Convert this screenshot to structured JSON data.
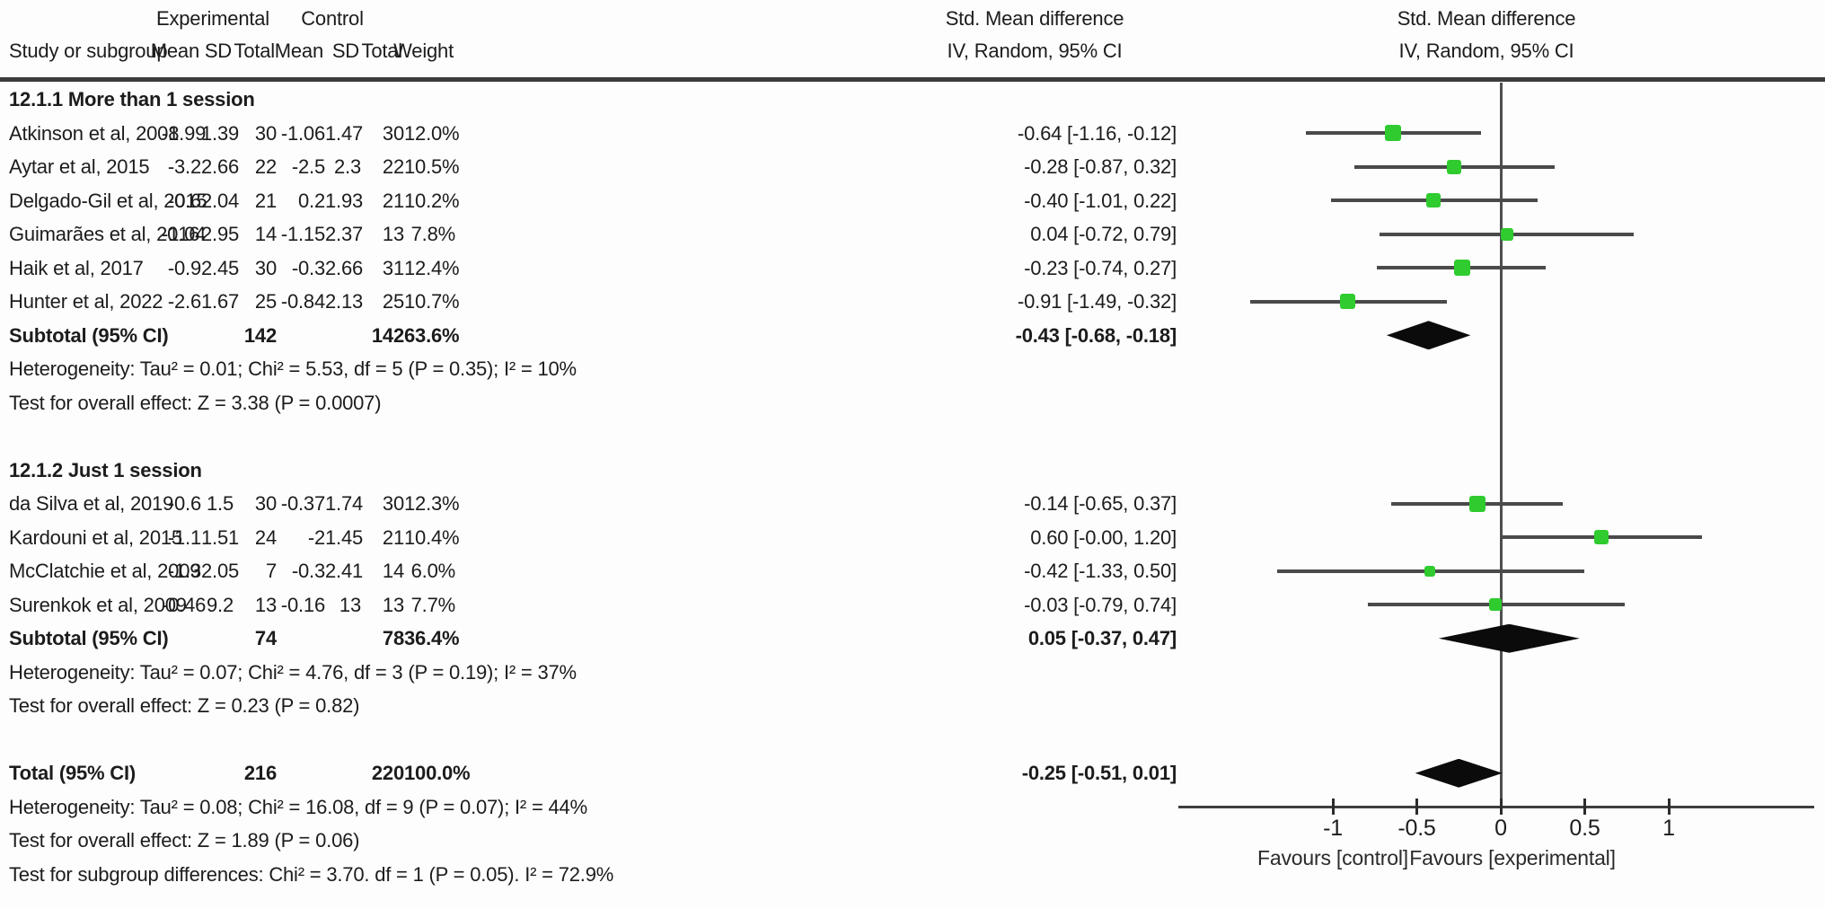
{
  "header": {
    "study_col": "Study or subgroup",
    "exp_group": "Experimental",
    "ctrl_group": "Control",
    "exp_mean": "Mean",
    "exp_sd": "SD",
    "exp_total": "Total",
    "ctrl_mean": "Mean",
    "ctrl_sd": "SD",
    "ctrl_total": "Total",
    "weight": "Weight",
    "effect_col_line1": "Std. Mean difference",
    "effect_col_line2": "IV, Random, 95% CI",
    "plot_col_line1": "Std. Mean difference",
    "plot_col_line2": "IV, Random, 95% CI"
  },
  "rows": [
    {
      "kind": "group",
      "study": "12.1.1 More than 1 session"
    },
    {
      "kind": "study",
      "study": "Atkinson et al, 2008",
      "m1": "-1.99",
      "sd1": "1.39",
      "t1": "30",
      "m2": "-1.06",
      "sd2": "1.47",
      "t2": "30",
      "w": "12.0%",
      "ci": "-0.64 [-1.16, -0.12]"
    },
    {
      "kind": "study",
      "study": "Aytar et al, 2015",
      "m1": "-3.2",
      "sd1": "2.66",
      "t1": "22",
      "m2": "-2.5",
      "sd2": "2.3",
      "t2": "22",
      "w": "10.5%",
      "ci": "-0.28 [-0.87, 0.32]"
    },
    {
      "kind": "study",
      "study": "Delgado-Gil et al, 2015",
      "m1": "-0.6",
      "sd1": "2.04",
      "t1": "21",
      "m2": "0.2",
      "sd2": "1.93",
      "t2": "21",
      "w": "10.2%",
      "ci": "-0.40 [-1.01, 0.22]"
    },
    {
      "kind": "study",
      "study": "Guimarães et al, 2016",
      "m1": "-1.04",
      "sd1": "2.95",
      "t1": "14",
      "m2": "-1.15",
      "sd2": "2.37",
      "t2": "13",
      "w": "7.8%",
      "ci": "0.04 [-0.72, 0.79]"
    },
    {
      "kind": "study",
      "study": "Haik et al, 2017",
      "m1": "-0.9",
      "sd1": "2.45",
      "t1": "30",
      "m2": "-0.3",
      "sd2": "2.66",
      "t2": "31",
      "w": "12.4%",
      "ci": "-0.23 [-0.74, 0.27]"
    },
    {
      "kind": "study",
      "study": "Hunter et al, 2022",
      "m1": "-2.6",
      "sd1": "1.67",
      "t1": "25",
      "m2": "-0.84",
      "sd2": "2.13",
      "t2": "25",
      "w": "10.7%",
      "ci": "-0.91 [-1.49, -0.32]"
    },
    {
      "kind": "subtotal",
      "study": "Subtotal (95% CI)",
      "t1": "142",
      "t2": "142",
      "w": "63.6%",
      "ci": "-0.43 [-0.68, -0.18]"
    },
    {
      "kind": "note",
      "study": "Heterogeneity: Tau² = 0.01; Chi² = 5.53, df = 5 (P = 0.35); I² = 10%"
    },
    {
      "kind": "note",
      "study": "Test for overall effect: Z = 3.38 (P = 0.0007)"
    },
    {
      "kind": "blank",
      "study": ""
    },
    {
      "kind": "group",
      "study": "12.1.2 Just 1 session"
    },
    {
      "kind": "study",
      "study": "da Silva et al, 2019",
      "m1": "-0.6",
      "sd1": "1.5",
      "t1": "30",
      "m2": "-0.37",
      "sd2": "1.74",
      "t2": "30",
      "w": "12.3%",
      "ci": "-0.14 [-0.65, 0.37]"
    },
    {
      "kind": "study",
      "study": "Kardouni et al, 2015",
      "m1": "-1.1",
      "sd1": "1.51",
      "t1": "24",
      "m2": "-2",
      "sd2": "1.45",
      "t2": "21",
      "w": "10.4%",
      "ci": "0.60 [-0.00, 1.20]"
    },
    {
      "kind": "study",
      "study": "McClatchie et al, 2009",
      "m1": "-1.3",
      "sd1": "2.05",
      "t1": "7",
      "m2": "-0.3",
      "sd2": "2.41",
      "t2": "14",
      "w": "6.0%",
      "ci": "-0.42 [-1.33, 0.50]"
    },
    {
      "kind": "study",
      "study": "Surenkok et al, 2009",
      "m1": "-0.46",
      "sd1": "9.2",
      "t1": "13",
      "m2": "-0.16",
      "sd2": "13",
      "t2": "13",
      "w": "7.7%",
      "ci": "-0.03 [-0.79, 0.74]"
    },
    {
      "kind": "subtotal",
      "study": "Subtotal (95% CI)",
      "t1": "74",
      "t2": "78",
      "w": "36.4%",
      "ci": "0.05 [-0.37, 0.47]"
    },
    {
      "kind": "note",
      "study": "Heterogeneity: Tau² = 0.07; Chi² = 4.76, df = 3 (P = 0.19); I² = 37%"
    },
    {
      "kind": "note",
      "study": "Test for overall effect: Z = 0.23 (P = 0.82)"
    },
    {
      "kind": "blank",
      "study": ""
    },
    {
      "kind": "total",
      "study": "Total (95% CI)",
      "t1": "216",
      "t2": "220",
      "w": "100.0%",
      "ci": "-0.25 [-0.51, 0.01]"
    },
    {
      "kind": "note",
      "study": "Heterogeneity: Tau² = 0.08; Chi² = 16.08, df = 9 (P = 0.07); I² = 44%"
    },
    {
      "kind": "note",
      "study": "Test for overall effect: Z = 1.89 (P = 0.06)"
    },
    {
      "kind": "note",
      "study": "Test for subgroup differences: Chi² = 3.70. df = 1 (P = 0.05). I² = 72.9%"
    }
  ],
  "chart_data": {
    "type": "forest",
    "effect_measure": "Std. Mean difference, IV, Random, 95% CI",
    "x_axis": {
      "ticks": [
        -1,
        -0.5,
        0,
        0.5,
        1
      ],
      "tick_labels": [
        "-1",
        "-0.5",
        "0",
        "0.5",
        "1"
      ],
      "range_shown": [
        -1.92,
        1.86
      ],
      "zero_reference_line": 0
    },
    "favours_left": "Favours [control]",
    "favours_right": "Favours [experimental]",
    "subgroups": [
      {
        "label": "12.1.1 More than 1 session",
        "studies": [
          {
            "name": "Atkinson et al, 2008",
            "est": -0.64,
            "lo": -1.16,
            "hi": -0.12,
            "weight_pct": 12.0,
            "row": 1
          },
          {
            "name": "Aytar et al, 2015",
            "est": -0.28,
            "lo": -0.87,
            "hi": 0.32,
            "weight_pct": 10.5,
            "row": 2
          },
          {
            "name": "Delgado-Gil et al, 2015",
            "est": -0.4,
            "lo": -1.01,
            "hi": 0.22,
            "weight_pct": 10.2,
            "row": 3
          },
          {
            "name": "Guimarães et al, 2016",
            "est": 0.04,
            "lo": -0.72,
            "hi": 0.79,
            "weight_pct": 7.8,
            "row": 4
          },
          {
            "name": "Haik et al, 2017",
            "est": -0.23,
            "lo": -0.74,
            "hi": 0.27,
            "weight_pct": 12.4,
            "row": 5
          },
          {
            "name": "Hunter et al, 2022",
            "est": -0.91,
            "lo": -1.49,
            "hi": -0.32,
            "weight_pct": 10.7,
            "row": 6
          }
        ],
        "subtotal": {
          "est": -0.43,
          "lo": -0.68,
          "hi": -0.18,
          "row": 7
        }
      },
      {
        "label": "12.1.2 Just 1 session",
        "studies": [
          {
            "name": "da Silva et al, 2019",
            "est": -0.14,
            "lo": -0.65,
            "hi": 0.37,
            "weight_pct": 12.3,
            "row": 12
          },
          {
            "name": "Kardouni et al, 2015",
            "est": 0.6,
            "lo": 0.0,
            "hi": 1.2,
            "weight_pct": 10.4,
            "row": 13
          },
          {
            "name": "McClatchie et al, 2009",
            "est": -0.42,
            "lo": -1.33,
            "hi": 0.5,
            "weight_pct": 6.0,
            "row": 14
          },
          {
            "name": "Surenkok et al, 2009",
            "est": -0.03,
            "lo": -0.79,
            "hi": 0.74,
            "weight_pct": 7.7,
            "row": 15
          }
        ],
        "subtotal": {
          "est": 0.05,
          "lo": -0.37,
          "hi": 0.47,
          "row": 16
        }
      }
    ],
    "total": {
      "est": -0.25,
      "lo": -0.51,
      "hi": 0.01,
      "row": 20
    }
  },
  "colors": {
    "marker_green": "#2fcb2f",
    "ci_line_gray": "#4a4a4a",
    "diamond_black": "#0b0b0b",
    "rule_dark": "#3c3c3c"
  }
}
